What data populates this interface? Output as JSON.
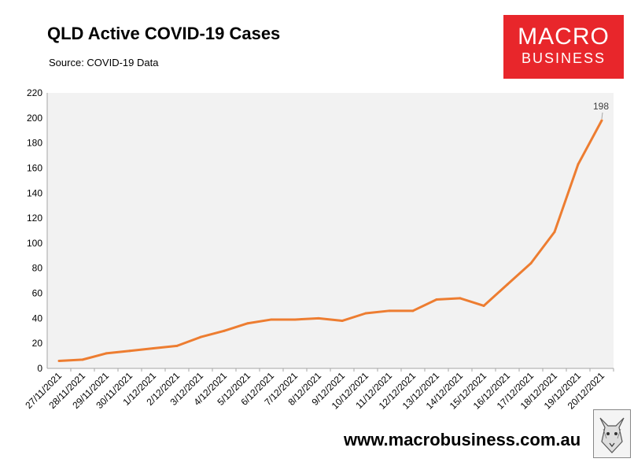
{
  "header": {
    "title": "QLD Active COVID-19 Cases",
    "source": "Source: COVID-19 Data"
  },
  "logo": {
    "line1": "MACRO",
    "line2": "BUSINESS"
  },
  "footer": {
    "website": "www.macrobusiness.com.au"
  },
  "colors": {
    "line": "#ed7d31",
    "plot_bg": "#f2f2f2",
    "logo_bg": "#e8262b"
  },
  "chart_data": {
    "type": "line",
    "title": "QLD Active COVID-19 Cases",
    "xlabel": "",
    "ylabel": "",
    "ylim": [
      0,
      220
    ],
    "yticks": [
      0,
      20,
      40,
      60,
      80,
      100,
      120,
      140,
      160,
      180,
      200,
      220
    ],
    "grid": false,
    "legend": "none",
    "x_tick_labels": [
      "27/11/2021",
      "28/11/2021",
      "29/11/2021",
      "30/11/2021",
      "1/12/2021",
      "2/12/2021",
      "3/12/2021",
      "4/12/2021",
      "5/12/2021",
      "6/12/2021",
      "7/12/2021",
      "8/12/2021",
      "9/12/2021",
      "10/12/2021",
      "11/12/2021",
      "12/12/2021",
      "13/12/2021",
      "14/12/2021",
      "15/12/2021",
      "16/12/2021",
      "17/12/2021",
      "18/12/2021",
      "19/12/2021",
      "20/12/2021"
    ],
    "series": [
      {
        "values": [
          6,
          7,
          12,
          14,
          16,
          18,
          25,
          30,
          36,
          39,
          39,
          40,
          38,
          44,
          46,
          46,
          55,
          56,
          50,
          67,
          84,
          109,
          163,
          198
        ],
        "color": "#ed7d31"
      }
    ],
    "annotations": [
      {
        "x": "20/12/2021",
        "text": "198"
      }
    ]
  }
}
